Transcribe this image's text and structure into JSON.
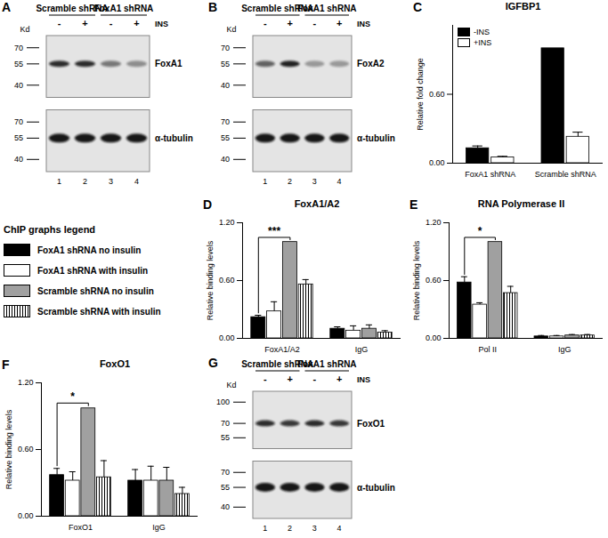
{
  "chart_data": [
    {
      "panel": "C",
      "type": "bar",
      "title": "IGFBP1",
      "ylabel": "Relative fold change",
      "categories": [
        "FoxA1 shRNA",
        "Scramble shRNA"
      ],
      "series": [
        {
          "name": "-INS",
          "color": "#000000",
          "values": [
            0.13,
            1.0
          ],
          "errors": [
            0.02,
            0
          ]
        },
        {
          "name": "+INS",
          "color": "#ffffff",
          "values": [
            0.05,
            0.23
          ],
          "errors": [
            0.01,
            0.04
          ]
        }
      ],
      "ylim": [
        0,
        1.2
      ],
      "yticks": [
        {
          "value": 0,
          "label": "0.00"
        },
        {
          "value": 0.6,
          "label": "0.60"
        }
      ],
      "legend": "top-left"
    },
    {
      "panel": "D",
      "type": "bar",
      "title": "FoxA1/A2",
      "ylabel": "Relative binding levels",
      "categories": [
        "FoxA1/A2",
        "IgG"
      ],
      "series": [
        {
          "name": "FoxA1 shRNA no insulin",
          "color": "#000000",
          "values": [
            0.22,
            0.1
          ],
          "errors": [
            0.02,
            0.02
          ]
        },
        {
          "name": "FoxA1 shRNA with  insulin",
          "color": "#ffffff",
          "values": [
            0.28,
            0.08
          ],
          "errors": [
            0.1,
            0.05
          ]
        },
        {
          "name": "Scramble shRNA no insulin",
          "color": "#a0a0a0",
          "values": [
            1.0,
            0.1
          ],
          "errors": [
            0,
            0.04
          ]
        },
        {
          "name": "Scramble shRNA with insulin",
          "color": "striped",
          "values": [
            0.56,
            0.06
          ],
          "errors": [
            0.05,
            0.02
          ]
        }
      ],
      "ylim": [
        0,
        1.2
      ],
      "yticks": [
        {
          "value": 0,
          "label": "0.00"
        },
        {
          "value": 0.6,
          "label": "0.60"
        },
        {
          "value": 1.2,
          "label": "1.20"
        }
      ],
      "annotations": [
        {
          "text": "***",
          "category": "FoxA1/A2",
          "from": "FoxA1 shRNA no insulin",
          "to": "Scramble shRNA no insulin"
        }
      ]
    },
    {
      "panel": "E",
      "type": "bar",
      "title": "RNA Polymerase II",
      "ylabel": "Relative binding levels",
      "categories": [
        "Pol II",
        "IgG"
      ],
      "series": [
        {
          "name": "FoxA1 shRNA no insulin",
          "color": "#000000",
          "values": [
            0.58,
            0.02
          ],
          "errors": [
            0.06,
            0.01
          ]
        },
        {
          "name": "FoxA1 shRNA with  insulin",
          "color": "#ffffff",
          "values": [
            0.35,
            0.02
          ],
          "errors": [
            0.02,
            0.01
          ]
        },
        {
          "name": "Scramble shRNA no insulin",
          "color": "#a0a0a0",
          "values": [
            1.0,
            0.03
          ],
          "errors": [
            0,
            0.01
          ]
        },
        {
          "name": "Scramble shRNA with insulin",
          "color": "striped",
          "values": [
            0.47,
            0.03
          ],
          "errors": [
            0.07,
            0.01
          ]
        }
      ],
      "ylim": [
        0,
        1.2
      ],
      "yticks": [
        {
          "value": 0,
          "label": "0.00"
        },
        {
          "value": 0.6,
          "label": "0.60"
        },
        {
          "value": 1.2,
          "label": "1.20"
        }
      ],
      "annotations": [
        {
          "text": "*",
          "category": "Pol II",
          "from": "FoxA1 shRNA no insulin",
          "to": "Scramble shRNA no insulin"
        }
      ]
    },
    {
      "panel": "F",
      "type": "bar",
      "title": "FoxO1",
      "ylabel": "Relative binding levels",
      "categories": [
        "FoxO1",
        "IgG"
      ],
      "series": [
        {
          "name": "FoxA1 shRNA no insulin",
          "color": "#000000",
          "values": [
            0.37,
            0.32
          ],
          "errors": [
            0.06,
            0.1
          ]
        },
        {
          "name": "FoxA1 shRNA with  insulin",
          "color": "#ffffff",
          "values": [
            0.32,
            0.32
          ],
          "errors": [
            0.08,
            0.13
          ]
        },
        {
          "name": "Scramble shRNA no insulin",
          "color": "#a0a0a0",
          "values": [
            0.97,
            0.32
          ],
          "errors": [
            0,
            0.12
          ]
        },
        {
          "name": "Scramble shRNA with insulin",
          "color": "striped",
          "values": [
            0.35,
            0.2
          ],
          "errors": [
            0.15,
            0.06
          ]
        }
      ],
      "ylim": [
        0,
        1.2
      ],
      "yticks": [
        {
          "value": 0,
          "label": "0.00"
        },
        {
          "value": 0.6,
          "label": "0.60"
        },
        {
          "value": 1.2,
          "label": "1.20"
        }
      ],
      "annotations": [
        {
          "text": "*",
          "category": "FoxO1",
          "from": "FoxA1 shRNA no insulin",
          "to": "Scramble shRNA no insulin"
        }
      ]
    }
  ],
  "chip_legend_title": "ChIP graphs legend",
  "blots": [
    {
      "panel": "A",
      "unit": "Kd",
      "groups": [
        "Scramble shRNA",
        "FoxA1 shRNA"
      ],
      "treatment": [
        "-",
        "+",
        "-",
        "+"
      ],
      "treatment_label": "INS",
      "lane_numbers": [
        1,
        2,
        3,
        4
      ],
      "strips": [
        {
          "label": "FoxA1",
          "markers": [
            70,
            55,
            40
          ],
          "band_at": 55,
          "intensity": [
            0.85,
            0.85,
            0.5,
            0.4
          ]
        },
        {
          "label": "α-tubulin",
          "markers": [
            70,
            55,
            40
          ],
          "band_at": 55,
          "intensity": [
            0.95,
            0.95,
            0.95,
            0.95
          ]
        }
      ]
    },
    {
      "panel": "B",
      "unit": "Kd",
      "groups": [
        "Scramble shRNA",
        "FoxA1 shRNA"
      ],
      "treatment": [
        "-",
        "+",
        "-",
        "+"
      ],
      "treatment_label": "INS",
      "lane_numbers": [
        1,
        2,
        3,
        4
      ],
      "strips": [
        {
          "label": "FoxA2",
          "markers": [
            70,
            55,
            40
          ],
          "band_at": 55,
          "intensity": [
            0.6,
            0.9,
            0.35,
            0.35
          ]
        },
        {
          "label": "α-tubulin",
          "markers": [
            70,
            55,
            40
          ],
          "band_at": 55,
          "intensity": [
            0.95,
            0.95,
            0.95,
            0.95
          ]
        }
      ]
    },
    {
      "panel": "G",
      "unit": "Kd",
      "groups": [
        "Scramble shRNA",
        "FoxA1 shRNA"
      ],
      "treatment": [
        "-",
        "+",
        "-",
        "+"
      ],
      "treatment_label": "INS",
      "lane_numbers": [
        1,
        2,
        3,
        4
      ],
      "strips": [
        {
          "label": "FoxO1",
          "markers": [
            100,
            70,
            55
          ],
          "band_at": 70,
          "intensity": [
            0.85,
            0.8,
            0.85,
            0.8
          ]
        },
        {
          "label": "α-tubulin",
          "markers": [
            70,
            55,
            40
          ],
          "band_at": 55,
          "intensity": [
            0.95,
            0.95,
            0.95,
            0.95
          ]
        }
      ]
    }
  ]
}
